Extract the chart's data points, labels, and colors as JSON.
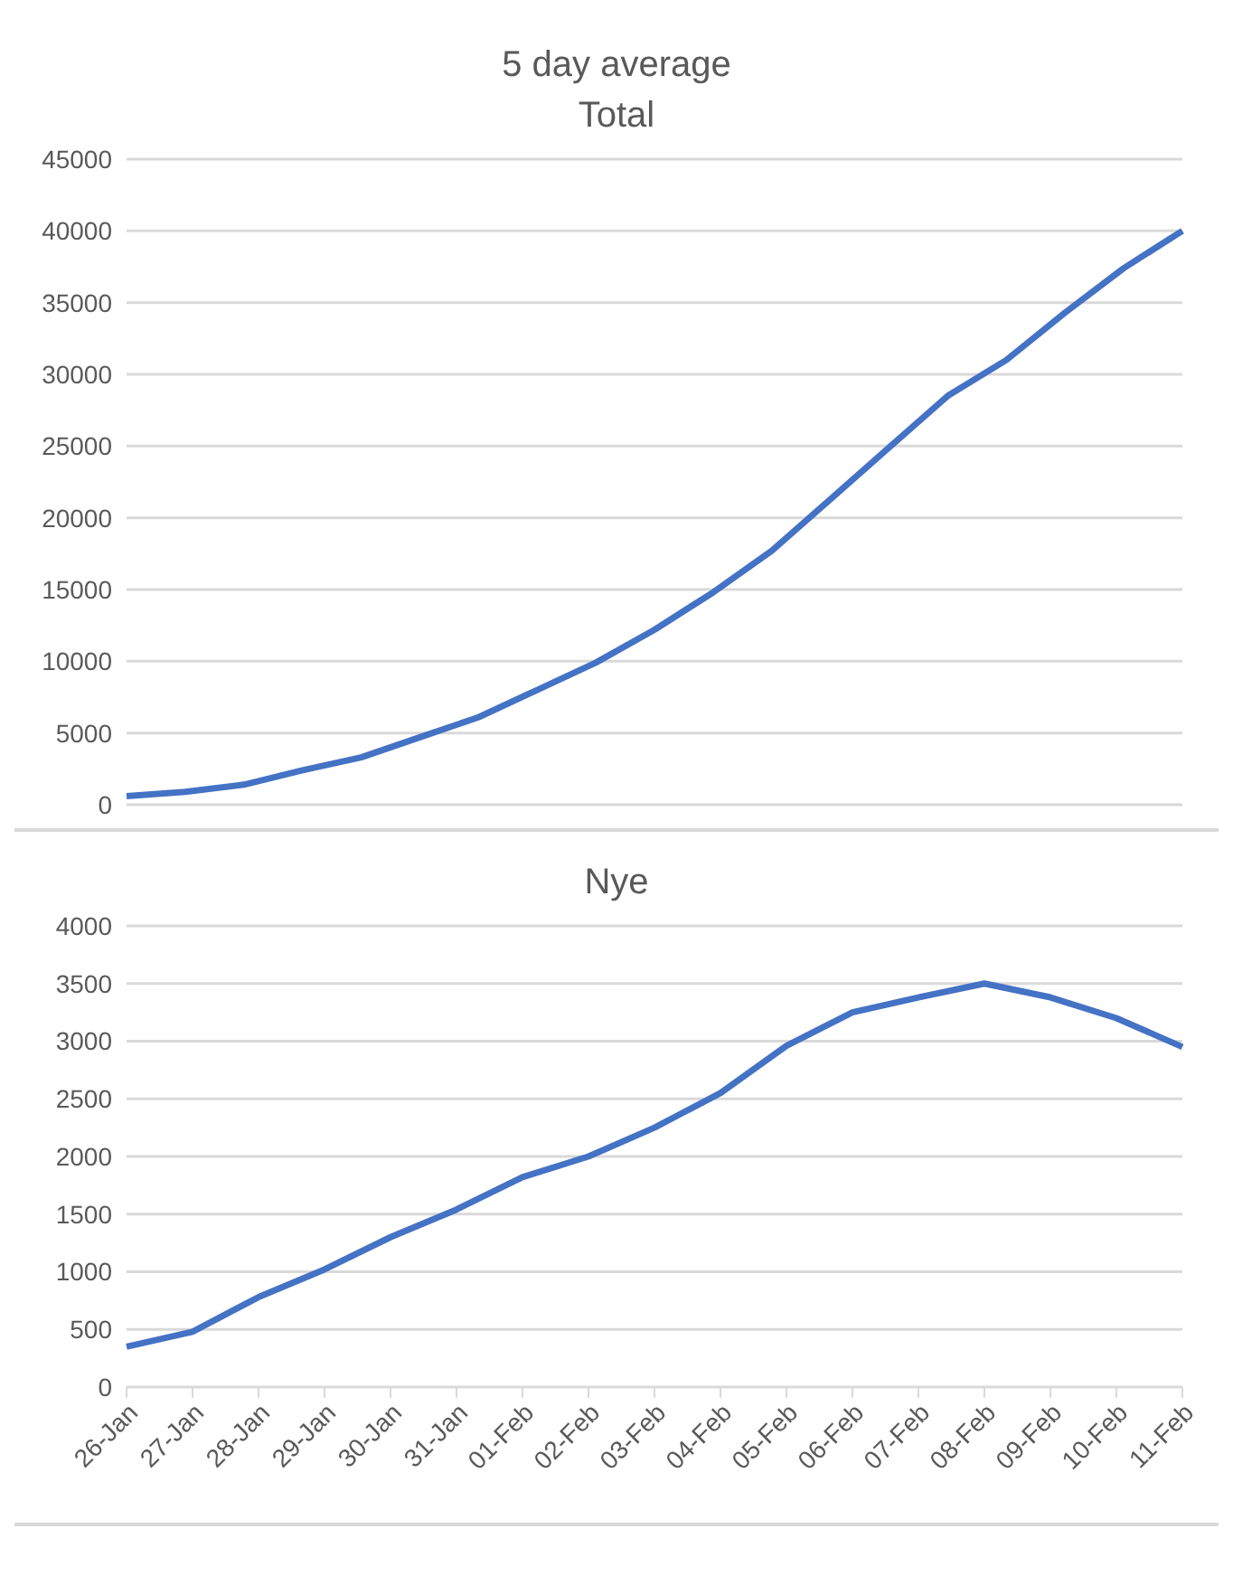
{
  "chart_data": [
    {
      "type": "line",
      "title": "5 day average",
      "subtitle": "Total",
      "categories": [
        null,
        null,
        null,
        null,
        null,
        null,
        null,
        null,
        null,
        null,
        null,
        null,
        null,
        null,
        null,
        null,
        null,
        null,
        null
      ],
      "series": [
        {
          "color": "#4472c4",
          "values": [
            600,
            900,
            1400,
            2400,
            3300,
            4700,
            6100,
            8000,
            9900,
            12200,
            14800,
            17700,
            21300,
            24900,
            28500,
            31000,
            34300,
            37400,
            40000
          ]
        }
      ],
      "ylim": [
        0,
        45000
      ],
      "yticks": [
        0,
        5000,
        10000,
        15000,
        20000,
        25000,
        30000,
        35000,
        40000,
        45000
      ],
      "grid": "y",
      "tick_labels": "y",
      "marker": "none",
      "line_style": "solid"
    },
    {
      "type": "line",
      "title": "Nye",
      "categories": [
        "26-Jan",
        "27-Jan",
        "28-Jan",
        "29-Jan",
        "30-Jan",
        "31-Jan",
        "01-Feb",
        "02-Feb",
        "03-Feb",
        "04-Feb",
        "05-Feb",
        "06-Feb",
        "07-Feb",
        "08-Feb",
        "09-Feb",
        "10-Feb",
        "11-Feb"
      ],
      "series": [
        {
          "color": "#4472c4",
          "values": [
            350,
            480,
            780,
            1020,
            1300,
            1540,
            1820,
            2000,
            2250,
            2550,
            2960,
            3250,
            3380,
            3500,
            3380,
            3200,
            2950
          ]
        }
      ],
      "ylim": [
        0,
        4000
      ],
      "yticks": [
        0,
        500,
        1000,
        1500,
        2000,
        2500,
        3000,
        3500,
        4000
      ],
      "grid": "y",
      "marker": "none",
      "line_style": "solid"
    }
  ]
}
